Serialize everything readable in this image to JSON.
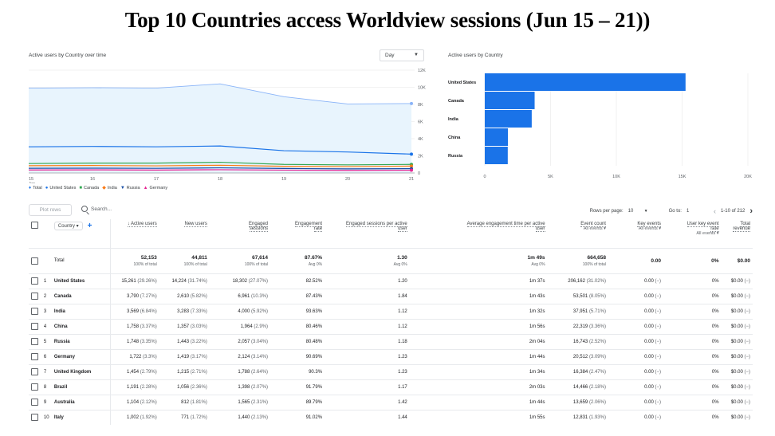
{
  "title": "Top 10 Countries access Worldview sessions (Jun 15 – 21))",
  "line_chart": {
    "label": "Active users by Country over time",
    "interval": "Day",
    "legend": [
      {
        "name": "Total",
        "color": "#1a73e8",
        "glyph": "♦"
      },
      {
        "name": "United States",
        "color": "#1a73e8",
        "glyph": "●"
      },
      {
        "name": "Canada",
        "color": "#34a853",
        "glyph": "■"
      },
      {
        "name": "India",
        "color": "#fa7b17",
        "glyph": "◆"
      },
      {
        "name": "Russia",
        "color": "#174ea6",
        "glyph": "▼"
      },
      {
        "name": "Germany",
        "color": "#e52592",
        "glyph": "▲"
      }
    ]
  },
  "bar_chart": {
    "label": "Active users by Country"
  },
  "chart_data": [
    {
      "type": "line",
      "x": [
        "15",
        "16",
        "17",
        "18",
        "19",
        "20",
        "21"
      ],
      "x_sublabel": "Jun",
      "yticks": [
        "0",
        "2K",
        "4K",
        "6K",
        "8K",
        "10K",
        "12K"
      ],
      "ylim": [
        0,
        12000
      ],
      "series": [
        {
          "name": "Total",
          "color": "#8ab4f8",
          "values": [
            9900,
            9950,
            9900,
            10400,
            8900,
            8050,
            8100
          ]
        },
        {
          "name": "United States",
          "color": "#1a73e8",
          "values": [
            3050,
            3100,
            3050,
            3150,
            2600,
            2450,
            2200
          ]
        },
        {
          "name": "Canada",
          "color": "#34a853",
          "values": [
            1100,
            1150,
            1150,
            1250,
            1000,
            950,
            1000
          ]
        },
        {
          "name": "India",
          "color": "#fa7b17",
          "values": [
            850,
            870,
            830,
            900,
            780,
            750,
            800
          ]
        },
        {
          "name": "Russia",
          "color": "#174ea6",
          "values": [
            550,
            560,
            540,
            600,
            520,
            480,
            500
          ]
        },
        {
          "name": "Germany",
          "color": "#e52592",
          "values": [
            350,
            360,
            340,
            380,
            330,
            300,
            320
          ]
        }
      ]
    },
    {
      "type": "bar",
      "orientation": "horizontal",
      "categories": [
        "United States",
        "Canada",
        "India",
        "China",
        "Russia"
      ],
      "values": [
        15261,
        3790,
        3569,
        1758,
        1748
      ],
      "xticks": [
        "0",
        "5K",
        "10K",
        "15K",
        "20K"
      ],
      "xlim": [
        0,
        20000
      ],
      "color": "#1a73e8"
    }
  ],
  "toolbar": {
    "plot_rows": "Plot rows",
    "search_placeholder": "Search...",
    "rows_per_page_label": "Rows per page:",
    "rows_per_page": "10",
    "goto_label": "Go to:",
    "goto_value": "1",
    "range": "1-10 of 212"
  },
  "table": {
    "dimension": "Country",
    "headers": [
      {
        "l1": "Active users",
        "l2": "",
        "sorted": true
      },
      {
        "l1": "New users",
        "l2": ""
      },
      {
        "l1": "Engaged",
        "l2": "sessions"
      },
      {
        "l1": "Engagement",
        "l2": "rate"
      },
      {
        "l1": "Engaged sessions per active",
        "l2": "user"
      },
      {
        "l1": "Average engagement time per active",
        "l2": "user"
      },
      {
        "l1": "Event count",
        "l2": "All events ▾"
      },
      {
        "l1": "Key events",
        "l2": "All events ▾"
      },
      {
        "l1": "User key event",
        "l2": "rate",
        "l3": "All events ▾"
      },
      {
        "l1": "Total",
        "l2": "revenue"
      }
    ],
    "total": {
      "label": "Total",
      "cells": [
        {
          "v": "52,153",
          "s": "100% of total"
        },
        {
          "v": "44,811",
          "s": "100% of total"
        },
        {
          "v": "67,614",
          "s": "100% of total"
        },
        {
          "v": "87.67%",
          "s": "Avg 0%"
        },
        {
          "v": "1.30",
          "s": "Avg 0%"
        },
        {
          "v": "1m 49s",
          "s": "Avg 0%"
        },
        {
          "v": "664,658",
          "s": "100% of total"
        },
        {
          "v": "0.00",
          "s": ""
        },
        {
          "v": "0%",
          "s": ""
        },
        {
          "v": "$0.00",
          "s": ""
        }
      ]
    },
    "rows": [
      {
        "n": "1",
        "country": "United States",
        "c": [
          "15,261 (29.26%)",
          "14,224 (31.74%)",
          "18,302 (27.07%)",
          "82.52%",
          "1.20",
          "1m 37s",
          "206,162 (31.02%)",
          "0.00 (−)",
          "0%",
          "$0.00 (−)"
        ]
      },
      {
        "n": "2",
        "country": "Canada",
        "c": [
          "3,790 (7.27%)",
          "2,610 (5.82%)",
          "6,961 (10.3%)",
          "87.43%",
          "1.84",
          "1m 43s",
          "53,501 (8.05%)",
          "0.00 (−)",
          "0%",
          "$0.00 (−)"
        ]
      },
      {
        "n": "3",
        "country": "India",
        "c": [
          "3,569 (6.84%)",
          "3,283 (7.33%)",
          "4,000 (5.92%)",
          "93.63%",
          "1.12",
          "1m 32s",
          "37,951 (5.71%)",
          "0.00 (−)",
          "0%",
          "$0.00 (−)"
        ]
      },
      {
        "n": "4",
        "country": "China",
        "c": [
          "1,758 (3.37%)",
          "1,357 (3.03%)",
          "1,964 (2.9%)",
          "80.46%",
          "1.12",
          "1m 56s",
          "22,319 (3.36%)",
          "0.00 (−)",
          "0%",
          "$0.00 (−)"
        ]
      },
      {
        "n": "5",
        "country": "Russia",
        "c": [
          "1,748 (3.35%)",
          "1,443 (3.22%)",
          "2,057 (3.04%)",
          "80.48%",
          "1.18",
          "2m 04s",
          "16,743 (2.52%)",
          "0.00 (−)",
          "0%",
          "$0.00 (−)"
        ]
      },
      {
        "n": "6",
        "country": "Germany",
        "c": [
          "1,722 (3.3%)",
          "1,419 (3.17%)",
          "2,124 (3.14%)",
          "90.69%",
          "1.23",
          "1m 44s",
          "20,512 (3.09%)",
          "0.00 (−)",
          "0%",
          "$0.00 (−)"
        ]
      },
      {
        "n": "7",
        "country": "United Kingdom",
        "c": [
          "1,454 (2.79%)",
          "1,215 (2.71%)",
          "1,788 (2.64%)",
          "90.3%",
          "1.23",
          "1m 34s",
          "16,384 (2.47%)",
          "0.00 (−)",
          "0%",
          "$0.00 (−)"
        ]
      },
      {
        "n": "8",
        "country": "Brazil",
        "c": [
          "1,191 (2.28%)",
          "1,056 (2.36%)",
          "1,398 (2.07%)",
          "91.79%",
          "1.17",
          "2m 03s",
          "14,466 (2.18%)",
          "0.00 (−)",
          "0%",
          "$0.00 (−)"
        ]
      },
      {
        "n": "9",
        "country": "Australia",
        "c": [
          "1,104 (2.12%)",
          "812 (1.81%)",
          "1,565 (2.31%)",
          "89.79%",
          "1.42",
          "1m 44s",
          "13,659 (2.06%)",
          "0.00 (−)",
          "0%",
          "$0.00 (−)"
        ]
      },
      {
        "n": "10",
        "country": "Italy",
        "c": [
          "1,002 (1.92%)",
          "771 (1.72%)",
          "1,440 (2.13%)",
          "91.02%",
          "1.44",
          "1m 55s",
          "12,831 (1.93%)",
          "0.00 (−)",
          "0%",
          "$0.00 (−)"
        ]
      }
    ]
  }
}
